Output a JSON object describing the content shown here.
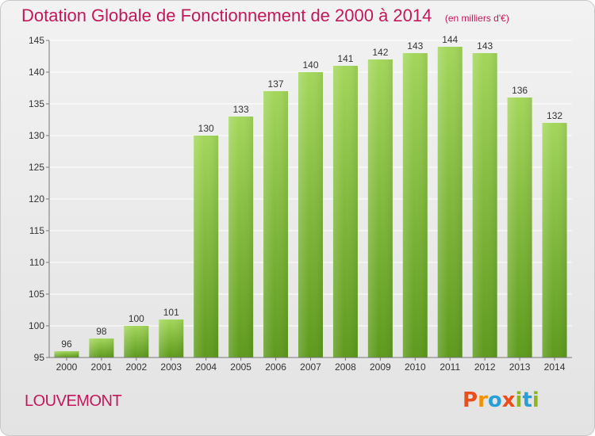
{
  "header": {
    "title": "Dotation Globale de Fonctionnement de 2000 à 2014",
    "unit": "(en milliers d'€)"
  },
  "footer": {
    "commune": "LOUVEMONT",
    "logo_text": "Proxiti",
    "logo_colors": [
      "#e94e1b",
      "#f39200",
      "#2a9fd6",
      "#e94e1b",
      "#8cb81e",
      "#2a9fd6",
      "#8cb81e"
    ]
  },
  "colors": {
    "bar_top": "#a3d65a",
    "bar_bottom": "#5d9a1c",
    "grid": "#ffffff",
    "axis": "#777777",
    "title": "#c2185b"
  },
  "chart_data": {
    "type": "bar",
    "categories": [
      "2000",
      "2001",
      "2002",
      "2003",
      "2004",
      "2005",
      "2006",
      "2007",
      "2008",
      "2009",
      "2010",
      "2011",
      "2012",
      "2013",
      "2014"
    ],
    "values": [
      96,
      98,
      100,
      101,
      130,
      133,
      137,
      140,
      141,
      142,
      143,
      144,
      143,
      136,
      132
    ],
    "ylim": [
      95,
      145
    ],
    "yticks": [
      95,
      100,
      105,
      110,
      115,
      120,
      125,
      130,
      135,
      140,
      145
    ],
    "grid": true,
    "data_labels": true
  }
}
